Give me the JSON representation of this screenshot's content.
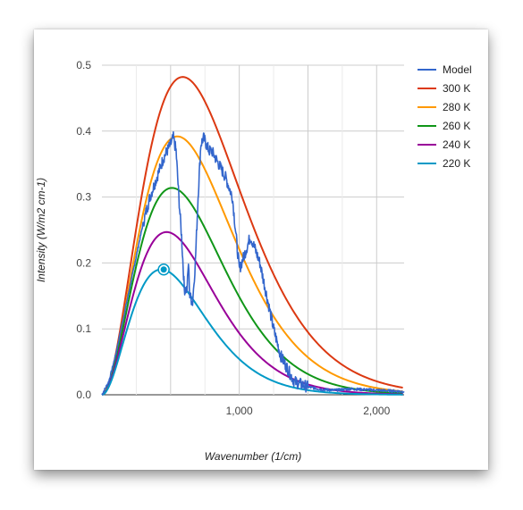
{
  "chart_data": {
    "type": "line",
    "xlabel": "Wavenumber (1/cm)",
    "ylabel": "Intensity (W/m2 cm-1)",
    "xlim": [
      0,
      2200
    ],
    "ylim": [
      0,
      0.5
    ],
    "x_ticks": [
      1000,
      2000
    ],
    "x_tick_labels": [
      "1,000",
      "2,000"
    ],
    "y_ticks": [
      0.0,
      0.1,
      0.2,
      0.3,
      0.4,
      0.5
    ],
    "y_tick_labels": [
      "0.0",
      "0.1",
      "0.2",
      "0.3",
      "0.4",
      "0.5"
    ],
    "grid": true,
    "legend_position": "right",
    "series": [
      {
        "name": "Model",
        "color": "#3366cc",
        "x": [
          0,
          50,
          100,
          150,
          200,
          250,
          300,
          350,
          400,
          450,
          500,
          520,
          540,
          560,
          580,
          600,
          620,
          630,
          640,
          660,
          670,
          680,
          700,
          720,
          740,
          760,
          780,
          800,
          850,
          900,
          950,
          1000,
          1050,
          1080,
          1100,
          1150,
          1200,
          1250,
          1300,
          1350,
          1400,
          1500,
          1600,
          1700,
          1800,
          1900,
          2000,
          2100,
          2200
        ],
        "y": [
          0.0,
          0.02,
          0.06,
          0.11,
          0.16,
          0.21,
          0.26,
          0.3,
          0.33,
          0.36,
          0.38,
          0.39,
          0.37,
          0.3,
          0.24,
          0.16,
          0.16,
          0.2,
          0.15,
          0.14,
          0.17,
          0.2,
          0.3,
          0.38,
          0.39,
          0.38,
          0.37,
          0.37,
          0.35,
          0.33,
          0.3,
          0.19,
          0.22,
          0.24,
          0.23,
          0.2,
          0.15,
          0.1,
          0.06,
          0.04,
          0.02,
          0.012,
          0.008,
          0.007,
          0.009,
          0.008,
          0.007,
          0.006,
          0.005
        ]
      },
      {
        "name": "300 K",
        "color": "#dc3912",
        "temperature": 300
      },
      {
        "name": "280 K",
        "color": "#ff9900",
        "temperature": 280
      },
      {
        "name": "260 K",
        "color": "#109618",
        "temperature": 260
      },
      {
        "name": "240 K",
        "color": "#990099",
        "temperature": 240
      },
      {
        "name": "220 K",
        "color": "#0099c6",
        "temperature": 220
      }
    ],
    "highlight_point": {
      "series": "220 K",
      "x": 450,
      "y": 0.19
    }
  }
}
